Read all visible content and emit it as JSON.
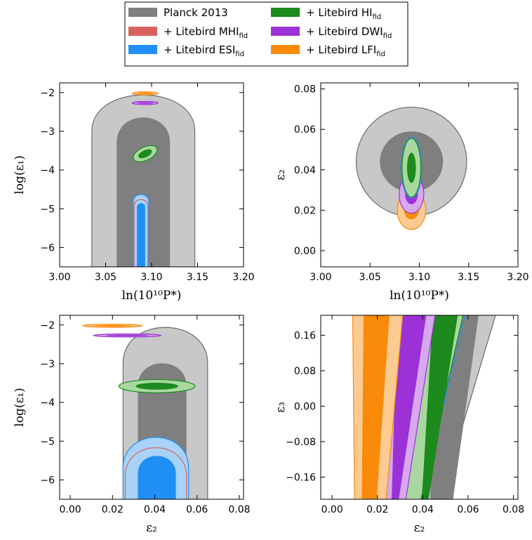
{
  "colors": {
    "planck_outer": "#c8c8c8",
    "planck_inner": "#7f7f7f",
    "planck_edge": "#6a6a6a",
    "mhi": "#d9625f",
    "esi_outer": "#a8d2f7",
    "esi_inner": "#1f8ff6",
    "hi_outer": "#a8d8a0",
    "hi_inner": "#1c8a1c",
    "dwi_outer": "#d7a8ee",
    "dwi_inner": "#9b31d6",
    "lfi_outer": "#fccb92",
    "lfi_inner": "#fa8a0a"
  },
  "legend": {
    "entries": [
      {
        "key": "planck",
        "text": "Planck 2013",
        "sub": ""
      },
      {
        "key": "mhi",
        "text": "+ Litebird MHI",
        "sub": "fid"
      },
      {
        "key": "esi",
        "text": "+ Litebird ESI",
        "sub": "fid"
      },
      {
        "key": "hi",
        "text": "+ Litebird HI",
        "sub": "fid"
      },
      {
        "key": "dwi",
        "text": "+ Litebird DWI",
        "sub": "fid"
      },
      {
        "key": "lfi",
        "text": "+ Litebird LFI",
        "sub": "fid"
      }
    ]
  },
  "chart_data": [
    {
      "type": "contour",
      "panel": "top-left",
      "xlabel": "ln(10¹⁰P*)",
      "ylabel": "log(ε₁)",
      "xlim": [
        3.0,
        3.2
      ],
      "ylim": [
        -6.5,
        -1.75
      ],
      "xticks": [
        3.0,
        3.05,
        3.1,
        3.15,
        3.2
      ],
      "xtick_labels": [
        "3.00",
        "3.05",
        "3.10",
        "3.15",
        "3.20"
      ],
      "yticks": [
        -2,
        -3,
        -4,
        -5,
        -6
      ],
      "ytick_labels": [
        "−2",
        "−3",
        "−4",
        "−5",
        "−6"
      ],
      "series": [
        {
          "name": "Planck 2013",
          "shape": "cap",
          "levels": {
            "outer": {
              "x": [
                3.035,
                3.147
              ],
              "top": -2.0
            },
            "inner": {
              "x": [
                3.062,
                3.12
              ],
              "top": -2.6
            }
          }
        },
        {
          "name": "+ Litebird ESI",
          "shape": "cap",
          "levels": {
            "outer": {
              "x": [
                3.08,
                3.097
              ],
              "top": -4.62
            },
            "inner": {
              "x": [
                3.084,
                3.093
              ],
              "top": -4.85
            }
          }
        },
        {
          "name": "+ Litebird MHI",
          "shape": "cap-line",
          "levels": {
            "outer": {
              "x": [
                3.081,
                3.096
              ],
              "top": -4.75
            }
          }
        },
        {
          "name": "+ Litebird HI",
          "shape": "ellipse",
          "center": [
            3.093,
            -3.58
          ],
          "outer": [
            0.014,
            0.17
          ],
          "inner": [
            0.008,
            0.09
          ],
          "tilt": -25
        },
        {
          "name": "+ Litebird DWI",
          "shape": "ellipse",
          "center": [
            3.093,
            -2.27
          ],
          "outer": [
            0.014,
            0.04
          ],
          "inner": [
            0.009,
            0.02
          ]
        },
        {
          "name": "+ Litebird LFI",
          "shape": "ellipse",
          "center": [
            3.093,
            -2.02
          ],
          "outer": [
            0.014,
            0.04
          ],
          "inner": [
            0.009,
            0.02
          ]
        }
      ]
    },
    {
      "type": "contour",
      "panel": "top-right",
      "xlabel": "ln(10¹⁰P*)",
      "ylabel": "ε₂",
      "xlim": [
        3.0,
        3.2
      ],
      "ylim": [
        -0.008,
        0.083
      ],
      "xticks": [
        3.0,
        3.05,
        3.1,
        3.15,
        3.2
      ],
      "xtick_labels": [
        "3.00",
        "3.05",
        "3.10",
        "3.15",
        "3.20"
      ],
      "yticks": [
        0.0,
        0.02,
        0.04,
        0.06,
        0.08
      ],
      "ytick_labels": [
        "0.00",
        "0.02",
        "0.04",
        "0.06",
        "0.08"
      ],
      "series": [
        {
          "name": "Planck 2013",
          "shape": "ellipse",
          "center": [
            3.092,
            0.044
          ],
          "outer": [
            0.056,
            0.027
          ],
          "inner": [
            0.032,
            0.015
          ]
        },
        {
          "name": "+ Litebird LFI",
          "shape": "ellipse",
          "center": [
            3.092,
            0.02
          ],
          "outer": [
            0.0145,
            0.0095
          ],
          "inner": [
            0.0075,
            0.0045
          ]
        },
        {
          "name": "+ Litebird DWI",
          "shape": "ellipse",
          "center": [
            3.092,
            0.028
          ],
          "outer": [
            0.0125,
            0.0095
          ],
          "inner": [
            0.0065,
            0.005
          ]
        },
        {
          "name": "+ Litebird ESI",
          "shape": "ellipse-line",
          "center": [
            3.092,
            0.041
          ],
          "outer": [
            0.0105,
            0.015
          ]
        },
        {
          "name": "+ Litebird MHI",
          "shape": "ellipse-line",
          "center": [
            3.092,
            0.041
          ],
          "outer": [
            0.0095,
            0.0145
          ]
        },
        {
          "name": "+ Litebird HI",
          "shape": "ellipse",
          "center": [
            3.092,
            0.041
          ],
          "outer": [
            0.0095,
            0.0145
          ],
          "inner": [
            0.0045,
            0.0075
          ]
        }
      ]
    },
    {
      "type": "contour",
      "panel": "bottom-left",
      "xlabel": "ε₂",
      "ylabel": "log(ε₁)",
      "xlim": [
        -0.005,
        0.082
      ],
      "ylim": [
        -6.5,
        -1.75
      ],
      "xticks": [
        0.0,
        0.02,
        0.04,
        0.06,
        0.08
      ],
      "xtick_labels": [
        "0.00",
        "0.02",
        "0.04",
        "0.06",
        "0.08"
      ],
      "yticks": [
        -2,
        -3,
        -4,
        -5,
        -6
      ],
      "ytick_labels": [
        "−2",
        "−3",
        "−4",
        "−5",
        "−6"
      ],
      "series": [
        {
          "name": "Planck 2013",
          "shape": "cap",
          "levels": {
            "outer": {
              "x": [
                0.025,
                0.065
              ],
              "top": -2.0
            },
            "inner": {
              "x": [
                0.032,
                0.055
              ],
              "top": -2.95
            }
          }
        },
        {
          "name": "+ Litebird ESI",
          "shape": "cap",
          "levels": {
            "outer": {
              "x": [
                0.025,
                0.056
              ],
              "top": -4.85
            },
            "inner": {
              "x": [
                0.032,
                0.05
              ],
              "top": -5.35
            }
          }
        },
        {
          "name": "+ Litebird MHI",
          "shape": "cap-line",
          "levels": {
            "outer": {
              "x": [
                0.026,
                0.055
              ],
              "top": -5.12
            }
          }
        },
        {
          "name": "+ Litebird HI",
          "shape": "ellipse",
          "center": [
            0.041,
            -3.58
          ],
          "outer": [
            0.018,
            0.17
          ],
          "inner": [
            0.01,
            0.09
          ]
        },
        {
          "name": "+ Litebird DWI",
          "shape": "ellipse",
          "center": [
            0.027,
            -2.27
          ],
          "outer": [
            0.016,
            0.04
          ],
          "inner": [
            0.01,
            0.02
          ]
        },
        {
          "name": "+ Litebird LFI",
          "shape": "ellipse",
          "center": [
            0.02,
            -2.02
          ],
          "outer": [
            0.014,
            0.04
          ],
          "inner": [
            0.009,
            0.02
          ]
        }
      ]
    },
    {
      "type": "contour",
      "panel": "bottom-right",
      "xlabel": "ε₂",
      "ylabel": "ε₃",
      "xlim": [
        -0.005,
        0.082
      ],
      "ylim": [
        -0.21,
        0.205
      ],
      "xticks": [
        0.0,
        0.02,
        0.04,
        0.06,
        0.08
      ],
      "xtick_labels": [
        "0.00",
        "0.02",
        "0.04",
        "0.06",
        "0.08"
      ],
      "yticks": [
        0.16,
        0.08,
        0.0,
        -0.08,
        -0.16
      ],
      "ytick_labels": [
        "0.16",
        "0.08",
        "0.00",
        "−0.08",
        "−0.16"
      ],
      "series": [
        {
          "name": "Planck 2013",
          "shape": "band",
          "outer": {
            "bottom": [
              0.035,
              0.045
            ],
            "top": [
              0.038,
              0.075
            ]
          },
          "inner": {
            "bottom": [
              0.043,
              0.052
            ],
            "top": [
              0.046,
              0.066
            ]
          }
        },
        {
          "name": "+ Litebird ESI",
          "shape": "band-line",
          "outer": {
            "bottom": [
              0.03,
              0.037
            ],
            "top": [
              0.04,
              0.061
            ]
          }
        },
        {
          "name": "+ Litebird MHI",
          "shape": "band-line",
          "outer": {
            "bottom": [
              0.031,
              0.036
            ],
            "top": [
              0.041,
              0.06
            ]
          }
        },
        {
          "name": "+ Litebird HI",
          "shape": "band",
          "outer": {
            "bottom": [
              0.03,
              0.037
            ],
            "top": [
              0.041,
              0.06
            ]
          },
          "inner": {
            "bottom": [
              0.039,
              0.041
            ],
            "top": [
              0.045,
              0.057
            ]
          }
        },
        {
          "name": "+ Litebird DWI",
          "shape": "band",
          "outer": {
            "bottom": [
              0.023,
              0.031
            ],
            "top": [
              0.025,
              0.047
            ]
          },
          "inner": {
            "bottom": [
              0.026,
              0.028
            ],
            "top": [
              0.029,
              0.043
            ]
          }
        },
        {
          "name": "+ Litebird LFI",
          "shape": "band",
          "outer": {
            "bottom": [
              0.01,
              0.023
            ],
            "top": [
              0.009,
              0.032
            ]
          },
          "inner": {
            "bottom": [
              0.013,
              0.019
            ],
            "top": [
              0.014,
              0.026
            ]
          }
        }
      ]
    }
  ]
}
